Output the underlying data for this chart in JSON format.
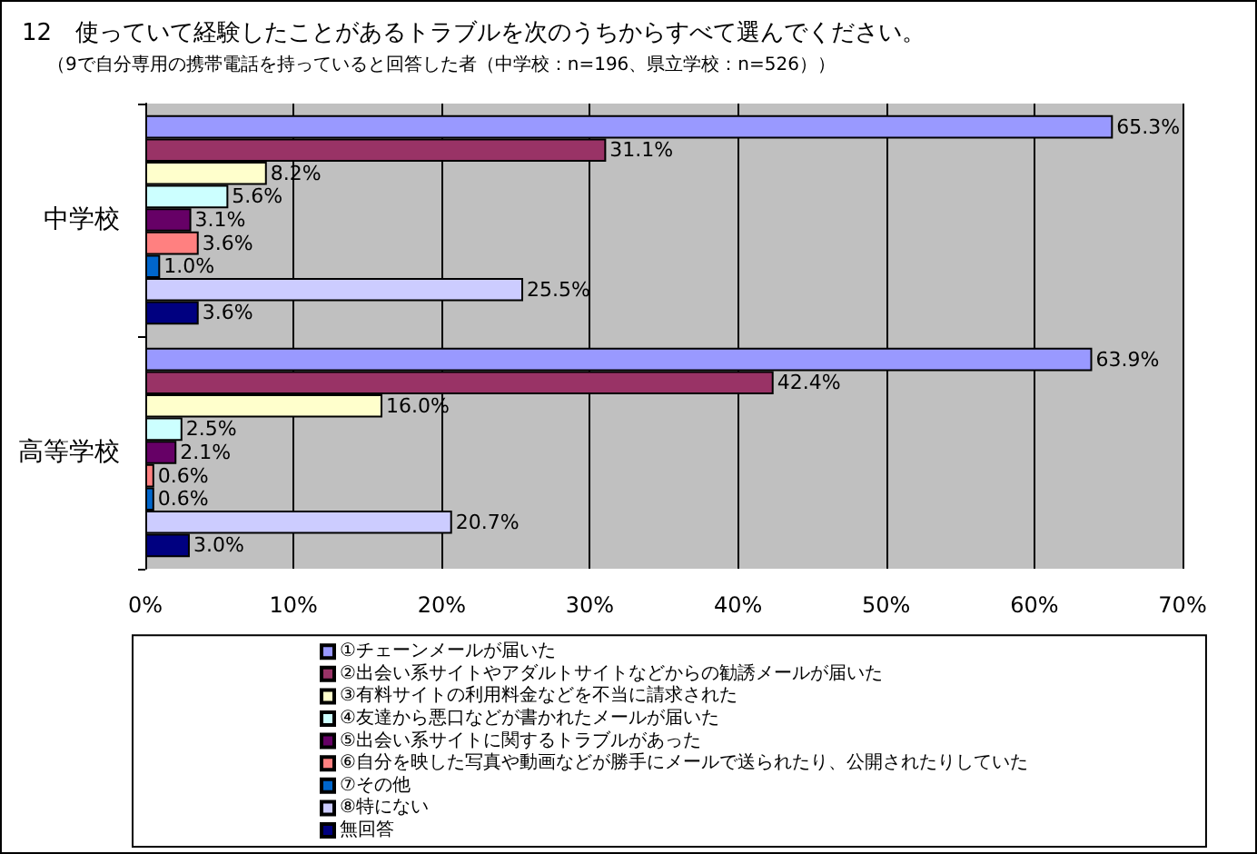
{
  "chart_data": {
    "type": "bar",
    "orientation": "horizontal",
    "title": "12　使っていて経験したことがあるトラブルを次のうちからすべて選んでください。",
    "subtitle": "（9で自分専用の携帯電話を持っていると回答した者（中学校：n=196、県立学校：n=526））",
    "categories": [
      "中学校",
      "高等学校"
    ],
    "series": [
      {
        "name": "①チェーンメールが届いた",
        "color": "#9999ff",
        "values": [
          65.3,
          63.9
        ],
        "value_labels": [
          "65.3%",
          "63.9%"
        ]
      },
      {
        "name": "②出会い系サイトやアダルトサイトなどからの勧誘メールが届いた",
        "color": "#993366",
        "values": [
          31.1,
          42.4
        ],
        "value_labels": [
          "31.1%",
          "42.4%"
        ]
      },
      {
        "name": "③有料サイトの利用料金などを不当に請求された",
        "color": "#ffffcc",
        "values": [
          8.2,
          16.0
        ],
        "value_labels": [
          "8.2%",
          "16.0%"
        ]
      },
      {
        "name": "④友達から悪口などが書かれたメールが届いた",
        "color": "#ccffff",
        "values": [
          5.6,
          2.5
        ],
        "value_labels": [
          "5.6%",
          "2.5%"
        ]
      },
      {
        "name": "⑤出会い系サイトに関するトラブルがあった",
        "color": "#660066",
        "values": [
          3.1,
          2.1
        ],
        "value_labels": [
          "3.1%",
          "2.1%"
        ]
      },
      {
        "name": "⑥自分を映した写真や動画などが勝手にメールで送られたり、公開されたりしていた",
        "color": "#ff8080",
        "values": [
          3.6,
          0.6
        ],
        "value_labels": [
          "3.6%",
          "0.6%"
        ]
      },
      {
        "name": "⑦その他",
        "color": "#0066cc",
        "values": [
          1.0,
          0.6
        ],
        "value_labels": [
          "1.0%",
          "0.6%"
        ]
      },
      {
        "name": "⑧特にない",
        "color": "#ccccff",
        "values": [
          25.5,
          20.7
        ],
        "value_labels": [
          "25.5%",
          "20.7%"
        ]
      },
      {
        "name": "無回答",
        "color": "#000080",
        "values": [
          3.6,
          3.0
        ],
        "value_labels": [
          "3.6%",
          "3.0%"
        ]
      }
    ],
    "xlim": [
      0,
      70
    ],
    "xticks": [
      {
        "value": 0,
        "label": "0%"
      },
      {
        "value": 10,
        "label": "10%"
      },
      {
        "value": 20,
        "label": "20%"
      },
      {
        "value": 30,
        "label": "30%"
      },
      {
        "value": 40,
        "label": "40%"
      },
      {
        "value": 50,
        "label": "50%"
      },
      {
        "value": 60,
        "label": "60%"
      },
      {
        "value": 70,
        "label": "70%"
      }
    ],
    "grid": "x",
    "legend": "bottom"
  }
}
